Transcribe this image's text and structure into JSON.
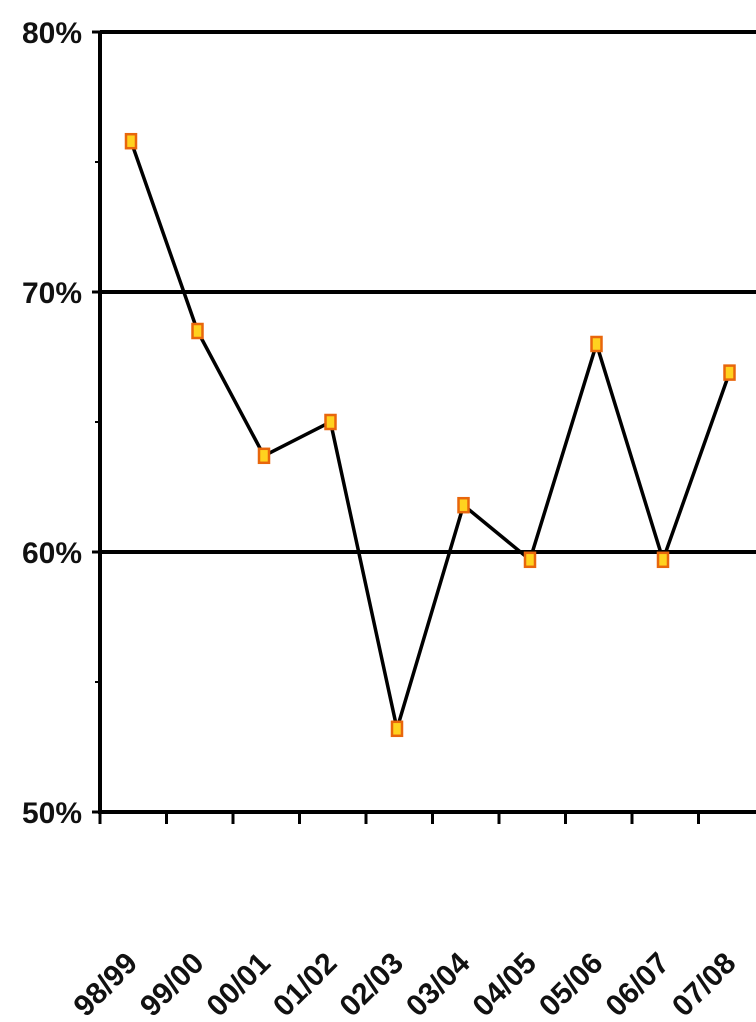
{
  "chart_data": {
    "type": "line",
    "categories": [
      "98/99",
      "99/00",
      "00/01",
      "01/02",
      "02/03",
      "03/04",
      "04/05",
      "05/06",
      "06/07",
      "07/08"
    ],
    "series": [
      {
        "values": [
          75.8,
          68.5,
          63.7,
          65.0,
          53.2,
          61.8,
          59.7,
          68.0,
          59.7,
          66.9
        ]
      }
    ],
    "ylim": [
      50,
      80
    ],
    "yticks": [
      {
        "value": 50,
        "label": "50%"
      },
      {
        "value": 60,
        "label": "60%"
      },
      {
        "value": 70,
        "label": "70%"
      },
      {
        "value": 80,
        "label": "80%"
      }
    ],
    "grid": true,
    "colors": {
      "line": "#000000",
      "marker_fill": "#ffd21f",
      "marker_edge": "#e8660c"
    }
  }
}
